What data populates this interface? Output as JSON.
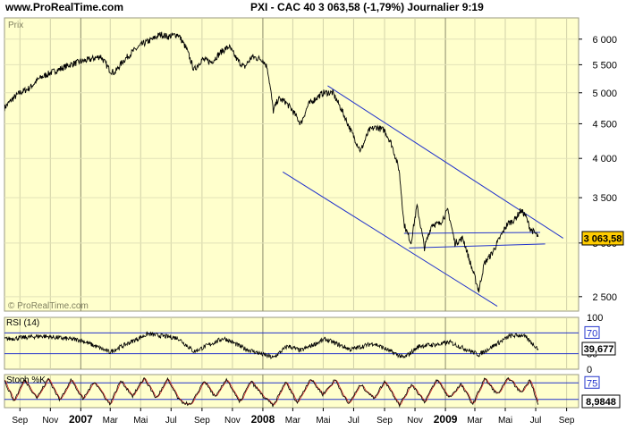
{
  "header": {
    "site": "www.ProRealTime.com",
    "ticker": "PXI - CAC 40   3 063,58 (-1,79%)   Journalier  9:19"
  },
  "chart_data": [
    {
      "type": "line",
      "panel": "price",
      "title": "Prix",
      "watermark": "© ProRealTime.com",
      "last_value_label": "3 063,58",
      "y_scale": "log",
      "ylim": [
        2380,
        6450
      ],
      "y_ticks": [
        2500,
        3000,
        3500,
        4000,
        4500,
        5000,
        5500,
        6000
      ],
      "y_tick_labels": [
        "2 500",
        "3 000",
        "3 500",
        "4 000",
        "4 500",
        "5 000",
        "5 500",
        "6 000"
      ],
      "x_range": [
        "2006-08-01",
        "2009-09-25"
      ],
      "x_tick_labels": [
        {
          "date": "2006-09-01",
          "label": "Sep",
          "bold": false
        },
        {
          "date": "2006-11-01",
          "label": "Nov",
          "bold": false
        },
        {
          "date": "2007-01-01",
          "label": "2007",
          "bold": true
        },
        {
          "date": "2007-03-01",
          "label": "Mar",
          "bold": false
        },
        {
          "date": "2007-05-01",
          "label": "Mai",
          "bold": false
        },
        {
          "date": "2007-07-01",
          "label": "Jul",
          "bold": false
        },
        {
          "date": "2007-09-01",
          "label": "Sep",
          "bold": false
        },
        {
          "date": "2007-11-01",
          "label": "Nov",
          "bold": false
        },
        {
          "date": "2008-01-01",
          "label": "2008",
          "bold": true
        },
        {
          "date": "2008-03-01",
          "label": "Mar",
          "bold": false
        },
        {
          "date": "2008-05-01",
          "label": "Mai",
          "bold": false
        },
        {
          "date": "2008-07-01",
          "label": "Jul",
          "bold": false
        },
        {
          "date": "2008-09-01",
          "label": "Sep",
          "bold": false
        },
        {
          "date": "2008-11-01",
          "label": "Nov",
          "bold": false
        },
        {
          "date": "2009-01-01",
          "label": "2009",
          "bold": true
        },
        {
          "date": "2009-03-01",
          "label": "Mar",
          "bold": false
        },
        {
          "date": "2009-05-01",
          "label": "Mai",
          "bold": false
        },
        {
          "date": "2009-07-01",
          "label": "Jul",
          "bold": false
        },
        {
          "date": "2009-09-01",
          "label": "Sep",
          "bold": false
        }
      ],
      "series": [
        {
          "values": [
            [
              "2006-08-01",
              4750
            ],
            [
              "2006-08-15",
              4880
            ],
            [
              "2006-09-01",
              5000
            ],
            [
              "2006-09-20",
              5080
            ],
            [
              "2006-10-10",
              5250
            ],
            [
              "2006-11-01",
              5350
            ],
            [
              "2006-11-20",
              5420
            ],
            [
              "2006-12-10",
              5500
            ],
            [
              "2007-01-01",
              5560
            ],
            [
              "2007-01-20",
              5600
            ],
            [
              "2007-02-10",
              5660
            ],
            [
              "2007-02-28",
              5400
            ],
            [
              "2007-03-10",
              5350
            ],
            [
              "2007-03-25",
              5550
            ],
            [
              "2007-04-15",
              5750
            ],
            [
              "2007-05-05",
              5900
            ],
            [
              "2007-05-25",
              6000
            ],
            [
              "2007-06-10",
              6100
            ],
            [
              "2007-06-25",
              6050
            ],
            [
              "2007-07-15",
              6100
            ],
            [
              "2007-08-01",
              5800
            ],
            [
              "2007-08-16",
              5400
            ],
            [
              "2007-09-01",
              5600
            ],
            [
              "2007-09-20",
              5550
            ],
            [
              "2007-10-10",
              5750
            ],
            [
              "2007-10-25",
              5850
            ],
            [
              "2007-11-10",
              5600
            ],
            [
              "2007-11-25",
              5450
            ],
            [
              "2007-12-10",
              5650
            ],
            [
              "2007-12-31",
              5600
            ],
            [
              "2008-01-10",
              5450
            ],
            [
              "2008-01-22",
              4700
            ],
            [
              "2008-02-01",
              4900
            ],
            [
              "2008-02-15",
              4850
            ],
            [
              "2008-03-01",
              4700
            ],
            [
              "2008-03-17",
              4500
            ],
            [
              "2008-04-01",
              4800
            ],
            [
              "2008-04-15",
              4900
            ],
            [
              "2008-05-01",
              5000
            ],
            [
              "2008-05-20",
              5000
            ],
            [
              "2008-06-05",
              4750
            ],
            [
              "2008-06-25",
              4400
            ],
            [
              "2008-07-15",
              4100
            ],
            [
              "2008-08-01",
              4400
            ],
            [
              "2008-08-15",
              4450
            ],
            [
              "2008-09-01",
              4400
            ],
            [
              "2008-09-15",
              4200
            ],
            [
              "2008-09-30",
              3850
            ],
            [
              "2008-10-10",
              3200
            ],
            [
              "2008-10-24",
              3000
            ],
            [
              "2008-11-05",
              3400
            ],
            [
              "2008-11-20",
              2950
            ],
            [
              "2008-12-05",
              3200
            ],
            [
              "2008-12-20",
              3200
            ],
            [
              "2009-01-06",
              3350
            ],
            [
              "2009-01-20",
              3000
            ],
            [
              "2009-02-05",
              3050
            ],
            [
              "2009-02-20",
              2800
            ],
            [
              "2009-03-09",
              2550
            ],
            [
              "2009-03-20",
              2800
            ],
            [
              "2009-04-05",
              2900
            ],
            [
              "2009-04-20",
              3050
            ],
            [
              "2009-05-05",
              3200
            ],
            [
              "2009-05-20",
              3250
            ],
            [
              "2009-06-01",
              3350
            ],
            [
              "2009-06-10",
              3300
            ],
            [
              "2009-06-20",
              3150
            ],
            [
              "2009-06-30",
              3100
            ],
            [
              "2009-07-06",
              3064
            ]
          ]
        }
      ],
      "trend_lines": [
        [
          [
            "2008-05-10",
            5120
          ],
          [
            "2009-08-25",
            3050
          ]
        ],
        [
          [
            "2008-02-10",
            3820
          ],
          [
            "2009-04-15",
            2420
          ]
        ],
        [
          [
            "2008-10-10",
            3100
          ],
          [
            "2009-07-10",
            3110
          ]
        ],
        [
          [
            "2008-10-20",
            2950
          ],
          [
            "2009-07-20",
            2990
          ]
        ]
      ]
    },
    {
      "type": "line",
      "panel": "rsi",
      "title": "RSI (14)",
      "last_value_label": "39,677",
      "ylim": [
        0,
        100
      ],
      "y_tick_labels": [
        "100",
        "70",
        "30",
        "0"
      ],
      "levels": [
        70,
        30
      ],
      "series": [
        {
          "values": [
            [
              "2006-08-01",
              58
            ],
            [
              "2006-10-15",
              64
            ],
            [
              "2007-01-01",
              56
            ],
            [
              "2007-02-28",
              33
            ],
            [
              "2007-05-15",
              68
            ],
            [
              "2007-07-15",
              60
            ],
            [
              "2007-08-16",
              34
            ],
            [
              "2007-10-15",
              60
            ],
            [
              "2007-11-25",
              40
            ],
            [
              "2008-01-22",
              22
            ],
            [
              "2008-02-20",
              45
            ],
            [
              "2008-03-17",
              36
            ],
            [
              "2008-05-05",
              58
            ],
            [
              "2008-06-25",
              38
            ],
            [
              "2008-08-10",
              50
            ],
            [
              "2008-10-10",
              22
            ],
            [
              "2008-11-10",
              45
            ],
            [
              "2008-12-20",
              48
            ],
            [
              "2009-01-10",
              52
            ],
            [
              "2009-03-09",
              28
            ],
            [
              "2009-05-10",
              64
            ],
            [
              "2009-06-05",
              66
            ],
            [
              "2009-07-06",
              39.7
            ]
          ]
        }
      ]
    },
    {
      "type": "line",
      "panel": "stochastic",
      "title": "Stoch %K",
      "last_value_label": "8,9848",
      "ylim": [
        0,
        100
      ],
      "y_tick_labels": [
        "75"
      ],
      "levels": [
        75,
        25
      ],
      "series": [
        {
          "values": [
            [
              "2006-08-01",
              80
            ],
            [
              "2006-08-20",
              20
            ],
            [
              "2006-09-10",
              85
            ],
            [
              "2006-10-05",
              30
            ],
            [
              "2006-10-28",
              88
            ],
            [
              "2006-11-20",
              22
            ],
            [
              "2006-12-12",
              86
            ],
            [
              "2007-01-05",
              25
            ],
            [
              "2007-01-28",
              80
            ],
            [
              "2007-02-28",
              10
            ],
            [
              "2007-03-22",
              82
            ],
            [
              "2007-04-15",
              35
            ],
            [
              "2007-05-08",
              90
            ],
            [
              "2007-06-01",
              28
            ],
            [
              "2007-06-24",
              85
            ],
            [
              "2007-07-18",
              20
            ],
            [
              "2007-08-10",
              8
            ],
            [
              "2007-09-05",
              82
            ],
            [
              "2007-09-28",
              30
            ],
            [
              "2007-10-20",
              88
            ],
            [
              "2007-11-15",
              15
            ],
            [
              "2007-12-08",
              80
            ],
            [
              "2008-01-01",
              35
            ],
            [
              "2008-01-22",
              5
            ],
            [
              "2008-02-15",
              78
            ],
            [
              "2008-03-10",
              15
            ],
            [
              "2008-04-05",
              88
            ],
            [
              "2008-04-30",
              40
            ],
            [
              "2008-05-25",
              85
            ],
            [
              "2008-06-20",
              10
            ],
            [
              "2008-07-15",
              70
            ],
            [
              "2008-08-10",
              28
            ],
            [
              "2008-09-02",
              80
            ],
            [
              "2008-10-01",
              8
            ],
            [
              "2008-10-25",
              72
            ],
            [
              "2008-11-20",
              18
            ],
            [
              "2008-12-15",
              85
            ],
            [
              "2009-01-08",
              30
            ],
            [
              "2009-02-01",
              70
            ],
            [
              "2009-02-25",
              10
            ],
            [
              "2009-03-20",
              88
            ],
            [
              "2009-04-15",
              40
            ],
            [
              "2009-05-08",
              90
            ],
            [
              "2009-06-01",
              45
            ],
            [
              "2009-06-20",
              85
            ],
            [
              "2009-07-06",
              9
            ]
          ]
        }
      ]
    }
  ]
}
